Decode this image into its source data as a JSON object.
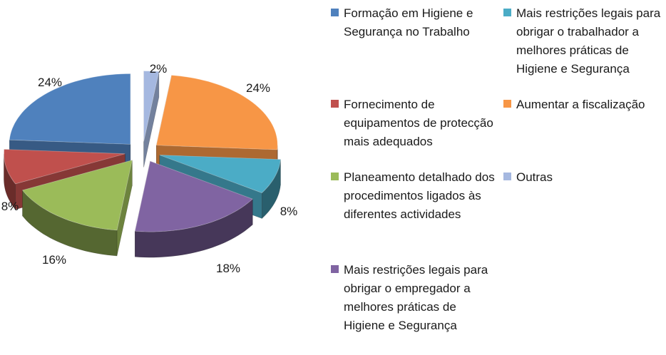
{
  "chart_data": {
    "type": "pie",
    "exploded": true,
    "three_d": true,
    "legend_position": "right",
    "slices": [
      {
        "label": "Formação em Higiene e Segurança no Trabalho",
        "value": 24,
        "data_label": "24%",
        "color": "#4F81BD"
      },
      {
        "label": "Fornecimento de equipamentos de protecção mais adequados",
        "value": 8,
        "data_label": "8%",
        "color": "#C0504D"
      },
      {
        "label": "Planeamento detalhado dos procedimentos ligados às diferentes actividades",
        "value": 16,
        "data_label": "16%",
        "color": "#9BBB59"
      },
      {
        "label": "Mais restrições legais para obrigar o empregador a melhores práticas de Higiene e Segurança",
        "value": 18,
        "data_label": "18%",
        "color": "#8064A2"
      },
      {
        "label": "Mais restrições legais para obrigar o trabalhador a melhores práticas de Higiene e Segurança",
        "value": 8,
        "data_label": "8%",
        "color": "#4BACC6"
      },
      {
        "label": "Aumentar a fiscalização",
        "value": 24,
        "data_label": "24%",
        "color": "#F79646"
      },
      {
        "label": "Outras",
        "value": 2,
        "data_label": "2%",
        "color": "#A5B8E0"
      }
    ]
  }
}
